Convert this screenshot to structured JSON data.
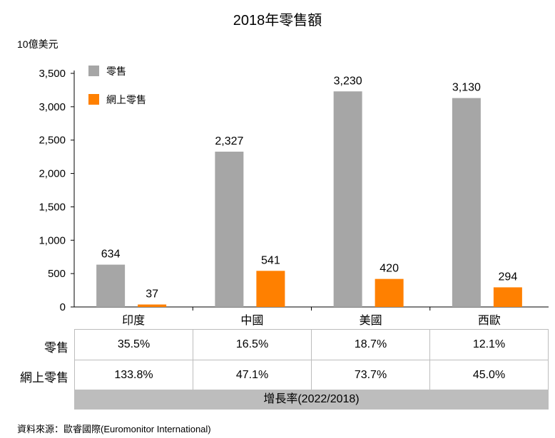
{
  "chart_data": {
    "type": "bar",
    "title": "2018年零售額",
    "unit_label": "10億美元",
    "categories": [
      "印度",
      "中國",
      "美國",
      "西歐"
    ],
    "series": [
      {
        "name": "零售",
        "values": [
          634,
          2327,
          3230,
          3130
        ],
        "color": "#a6a6a6"
      },
      {
        "name": "網上零售",
        "values": [
          37,
          541,
          420,
          294
        ],
        "color": "#ff8000"
      }
    ],
    "value_labels": [
      [
        "634",
        "2,327",
        "3,230",
        "3,130"
      ],
      [
        "37",
        "541",
        "420",
        "294"
      ]
    ],
    "ylim": [
      0,
      3500
    ],
    "yticks": [
      0,
      500,
      1000,
      1500,
      2000,
      2500,
      3000,
      3500
    ],
    "ytick_labels": [
      "0",
      "500",
      "1,000",
      "1,500",
      "2,000",
      "2,500",
      "3,000",
      "3,500"
    ],
    "grid": false,
    "legend_position": "top-left"
  },
  "growth_table": {
    "rows": [
      {
        "label": "零售",
        "values": [
          "35.5%",
          "16.5%",
          "18.7%",
          "12.1%"
        ]
      },
      {
        "label": "網上零售",
        "values": [
          "133.8%",
          "47.1%",
          "73.7%",
          "45.0%"
        ]
      }
    ],
    "caption": "增長率(2022/2018)"
  },
  "source": "資料來源：歐睿國際(Euromonitor International)"
}
